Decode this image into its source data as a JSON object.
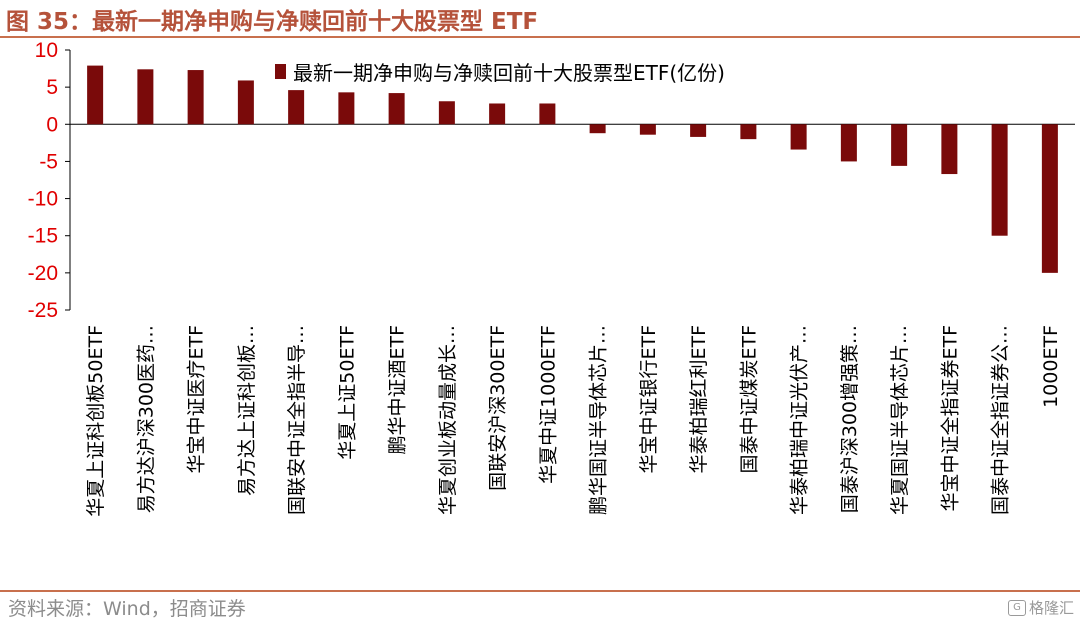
{
  "figure_title": "图 35：最新一期净申购与净赎回前十大股票型 ETF",
  "source_text": "资料来源：Wind，招商证券",
  "watermark_text": "格隆汇",
  "colors": {
    "bar": "#7a0a0a",
    "accent": "#c8704d",
    "axis_tick": "#e00000"
  },
  "chart_data": {
    "type": "bar",
    "legend": "最新一期净申购与净赎回前十大股票型ETF(亿份)",
    "legend_position": "top-right",
    "grid": false,
    "ylim": [
      -25,
      10
    ],
    "yticks": [
      10,
      5,
      0,
      -5,
      -10,
      -15,
      -20,
      -25
    ],
    "categories": [
      "华夏上证科创板50ETF",
      "易方达沪深300医药…",
      "华宝中证医疗ETF",
      "易方达上证科创板…",
      "国联安中证全指半导…",
      "华夏上证50ETF",
      "鹏华中证酒ETF",
      "华夏创业板动量成长…",
      "国联安沪深300ETF",
      "华夏中证1000ETF",
      "鹏华国证半导体芯片…",
      "华宝中证银行ETF",
      "华泰柏瑞红利ETF",
      "国泰中证煤炭ETF",
      "华泰柏瑞中证光伏产…",
      "国泰沪深300增强策…",
      "华夏国证半导体芯片…",
      "华宝中证全指证券ETF",
      "国泰中证全指证券公…",
      "1000ETF"
    ],
    "values": [
      7.9,
      7.4,
      7.3,
      5.9,
      4.6,
      4.3,
      4.2,
      3.1,
      2.8,
      2.8,
      -1.2,
      -1.4,
      -1.7,
      -2.0,
      -3.4,
      -5.0,
      -5.6,
      -6.7,
      -15.0,
      -20.0
    ]
  }
}
